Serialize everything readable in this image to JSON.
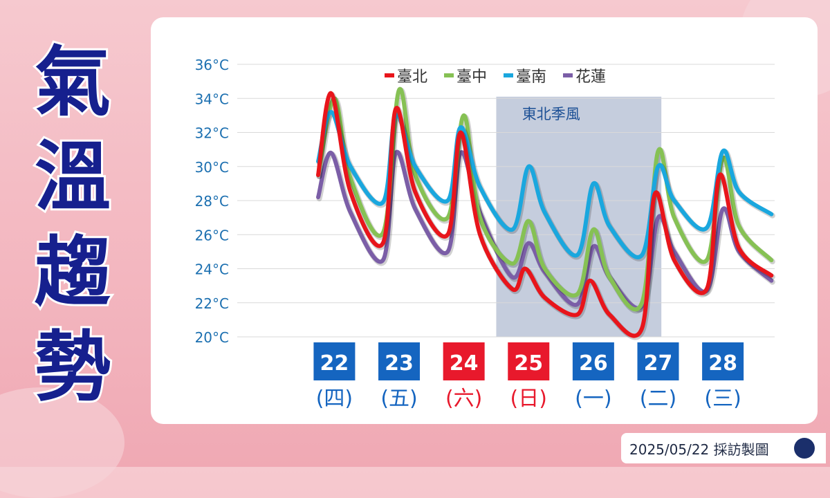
{
  "page_title": "氣溫趨勢",
  "footer": {
    "text": "2025/05/22 採訪製圖"
  },
  "annotation": {
    "label": "東北季風",
    "x_start": 24.0,
    "x_end": 26.55
  },
  "colors": {
    "title": "#16208e",
    "day_box_weekday": "#1565c0",
    "day_box_weekend": "#e8192c",
    "axis_text": "#1b6fb0",
    "band": "#c5cddd"
  },
  "chart_data": {
    "type": "line",
    "title": "",
    "xlabel": "",
    "ylabel": "",
    "ylim": [
      20,
      36
    ],
    "yticks": [
      20,
      22,
      24,
      26,
      28,
      30,
      32,
      34,
      36
    ],
    "ytick_unit": "°C",
    "grid": true,
    "legend_position": "top-center",
    "days": [
      {
        "date": "22",
        "weekday": "(四)",
        "weekend": false
      },
      {
        "date": "23",
        "weekday": "(五)",
        "weekend": false
      },
      {
        "date": "24",
        "weekday": "(六)",
        "weekend": true
      },
      {
        "date": "25",
        "weekday": "(日)",
        "weekend": true
      },
      {
        "date": "26",
        "weekday": "(一)",
        "weekend": false
      },
      {
        "date": "27",
        "weekday": "(二)",
        "weekend": false
      },
      {
        "date": "28",
        "weekday": "(三)",
        "weekend": false
      }
    ],
    "series": [
      {
        "name": "臺北",
        "color": "#e8151b",
        "points": [
          [
            21.25,
            29.5
          ],
          [
            21.45,
            34.3
          ],
          [
            21.75,
            28.5
          ],
          [
            22.25,
            25.5
          ],
          [
            22.45,
            33.4
          ],
          [
            22.75,
            28.5
          ],
          [
            23.25,
            26.0
          ],
          [
            23.45,
            32.0
          ],
          [
            23.75,
            26.0
          ],
          [
            24.25,
            22.8
          ],
          [
            24.45,
            24.0
          ],
          [
            24.75,
            22.3
          ],
          [
            25.25,
            21.3
          ],
          [
            25.45,
            23.3
          ],
          [
            25.75,
            21.3
          ],
          [
            26.25,
            20.5
          ],
          [
            26.45,
            28.4
          ],
          [
            26.75,
            24.5
          ],
          [
            27.25,
            22.8
          ],
          [
            27.45,
            29.5
          ],
          [
            27.75,
            25.2
          ],
          [
            28.25,
            23.6
          ]
        ]
      },
      {
        "name": "臺中",
        "color": "#86c154",
        "points": [
          [
            21.25,
            29.5
          ],
          [
            21.5,
            34.0
          ],
          [
            21.75,
            29.3
          ],
          [
            22.25,
            26.1
          ],
          [
            22.5,
            34.5
          ],
          [
            22.75,
            29.5
          ],
          [
            23.25,
            27.0
          ],
          [
            23.5,
            33.0
          ],
          [
            23.75,
            27.0
          ],
          [
            24.25,
            24.3
          ],
          [
            24.5,
            26.8
          ],
          [
            24.75,
            24.0
          ],
          [
            25.25,
            22.5
          ],
          [
            25.5,
            26.3
          ],
          [
            25.75,
            23.5
          ],
          [
            26.25,
            22.0
          ],
          [
            26.5,
            30.9
          ],
          [
            26.75,
            27.0
          ],
          [
            27.25,
            24.5
          ],
          [
            27.5,
            30.5
          ],
          [
            27.75,
            26.5
          ],
          [
            28.25,
            24.5
          ]
        ]
      },
      {
        "name": "臺南",
        "color": "#1aa7de",
        "points": [
          [
            21.25,
            30.3
          ],
          [
            21.45,
            33.2
          ],
          [
            21.75,
            30.0
          ],
          [
            22.25,
            27.9
          ],
          [
            22.45,
            33.0
          ],
          [
            22.75,
            30.0
          ],
          [
            23.25,
            28.0
          ],
          [
            23.45,
            32.3
          ],
          [
            23.75,
            28.8
          ],
          [
            24.25,
            26.3
          ],
          [
            24.5,
            30.0
          ],
          [
            24.75,
            27.3
          ],
          [
            25.25,
            24.8
          ],
          [
            25.5,
            29.0
          ],
          [
            25.75,
            26.5
          ],
          [
            26.25,
            24.8
          ],
          [
            26.5,
            30.0
          ],
          [
            26.75,
            28.0
          ],
          [
            27.25,
            26.4
          ],
          [
            27.5,
            30.9
          ],
          [
            27.75,
            28.5
          ],
          [
            28.25,
            27.2
          ]
        ]
      },
      {
        "name": "花蓮",
        "color": "#7b5ea7",
        "points": [
          [
            21.25,
            28.2
          ],
          [
            21.45,
            30.8
          ],
          [
            21.75,
            27.3
          ],
          [
            22.25,
            24.5
          ],
          [
            22.45,
            30.8
          ],
          [
            22.75,
            27.5
          ],
          [
            23.25,
            25.0
          ],
          [
            23.45,
            30.8
          ],
          [
            23.75,
            27.3
          ],
          [
            24.25,
            23.5
          ],
          [
            24.5,
            25.5
          ],
          [
            24.75,
            23.8
          ],
          [
            25.25,
            21.9
          ],
          [
            25.5,
            25.3
          ],
          [
            25.75,
            23.5
          ],
          [
            26.25,
            21.8
          ],
          [
            26.5,
            27.0
          ],
          [
            26.75,
            25.0
          ],
          [
            27.25,
            22.7
          ],
          [
            27.5,
            27.5
          ],
          [
            27.75,
            25.0
          ],
          [
            28.25,
            23.3
          ]
        ]
      }
    ]
  }
}
